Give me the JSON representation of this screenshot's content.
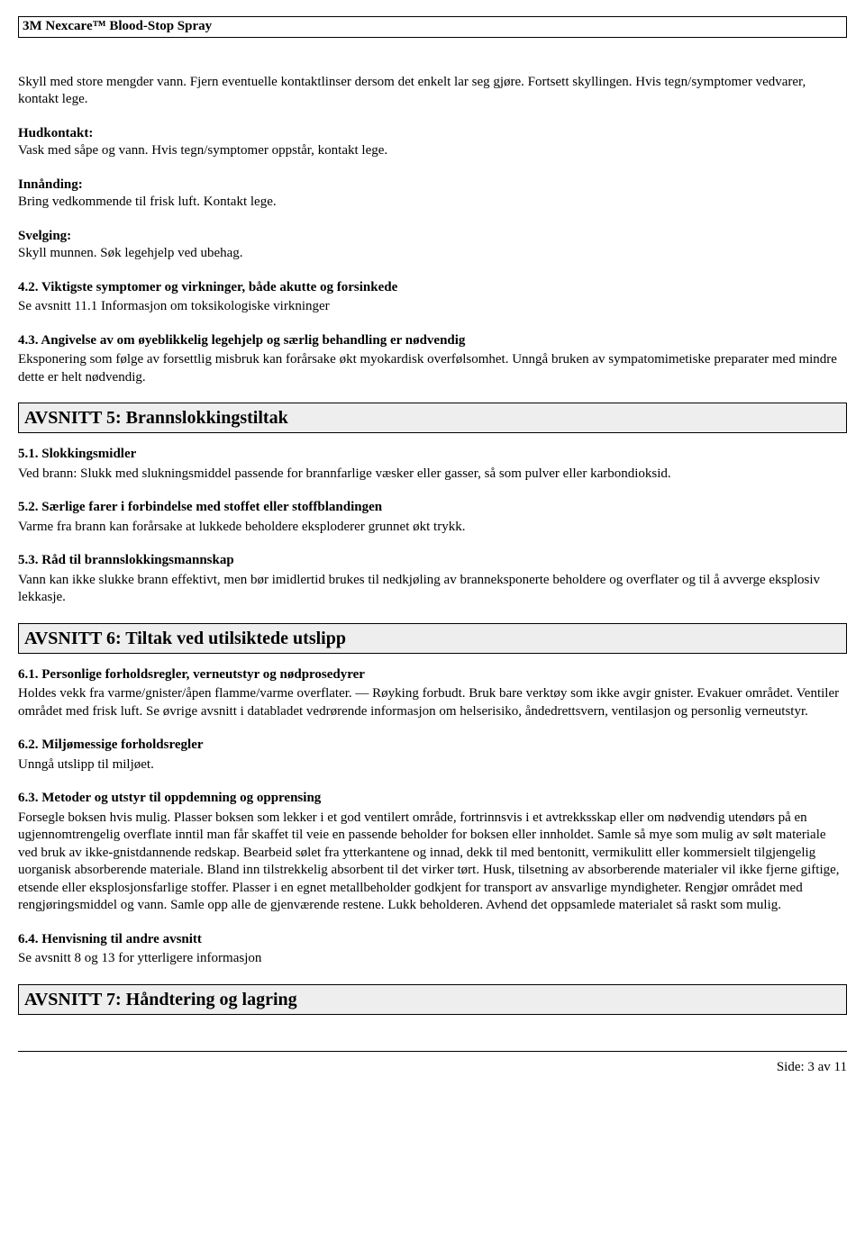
{
  "doc_title": "3M Nexcare™ Blood-Stop Spray",
  "intro_para": "Skyll med store mengder vann. Fjern eventuelle kontaktlinser dersom det enkelt lar seg gjøre. Fortsett skyllingen. Hvis tegn/symptomer vedvarer, kontakt lege.",
  "hudkontakt": {
    "label": "Hudkontakt:",
    "text": "Vask med såpe og vann. Hvis tegn/symptomer oppstår, kontakt lege."
  },
  "innanding": {
    "label": "Innånding:",
    "text": "Bring vedkommende til frisk luft. Kontakt lege."
  },
  "svelging": {
    "label": "Svelging:",
    "text": "Skyll munnen. Søk legehjelp ved ubehag."
  },
  "s42": {
    "heading": "4.2. Viktigste symptomer og virkninger, både akutte og forsinkede",
    "text": "Se avsnitt 11.1 Informasjon om toksikologiske virkninger"
  },
  "s43": {
    "heading": "4.3. Angivelse av om øyeblikkelig legehjelp og særlig behandling er nødvendig",
    "text": "Eksponering som følge av forsettlig misbruk kan forårsake økt myokardisk overfølsomhet. Unngå bruken av sympatomimetiske preparater med mindre dette er helt nødvendig."
  },
  "avsnitt5_title": "AVSNITT 5: Brannslokkingstiltak",
  "s51": {
    "heading": "5.1. Slokkingsmidler",
    "text": "Ved brann:  Slukk med slukningsmiddel passende for brannfarlige væsker eller gasser, så som pulver eller karbondioksid."
  },
  "s52": {
    "heading": "5.2. Særlige farer i forbindelse med stoffet eller stoffblandingen",
    "text": "Varme fra brann kan forårsake at lukkede beholdere eksploderer grunnet økt trykk."
  },
  "s53": {
    "heading": "5.3. Råd til brannslokkingsmannskap",
    "text": "Vann kan ikke slukke brann effektivt, men bør imidlertid brukes til nedkjøling av branneksponerte beholdere og overflater og til å avverge eksplosiv lekkasje."
  },
  "avsnitt6_title": "AVSNITT 6: Tiltak ved utilsiktede utslipp",
  "s61": {
    "heading": "6.1. Personlige forholdsregler, verneutstyr og nødprosedyrer",
    "text": "Holdes vekk fra varme/gnister/åpen flamme/varme overflater. — Røyking forbudt.  Bruk bare verktøy som ikke avgir gnister.  Evakuer området.  Ventiler området med frisk luft.  Se øvrige avsnitt i databladet vedrørende informasjon om helserisiko, åndedrettsvern, ventilasjon og personlig verneutstyr."
  },
  "s62": {
    "heading": "6.2. Miljømessige forholdsregler",
    "text": "Unngå utslipp til miljøet."
  },
  "s63": {
    "heading": "6.3. Metoder og utstyr til oppdemning og opprensing",
    "text": "Forsegle boksen hvis mulig. Plasser boksen som lekker i et god ventilert område, fortrinnsvis i et avtrekksskap eller om nødvendig utendørs på en ugjennomtrengelig overflate inntil man får skaffet til veie en passende beholder for boksen eller innholdet.  Samle så mye som mulig av sølt materiale ved bruk av ikke-gnistdannende redskap.  Bearbeid sølet fra ytterkantene og innad, dekk til med bentonitt, vermikulitt eller kommersielt tilgjengelig uorganisk absorberende materiale.  Bland inn tilstrekkelig absorbent til det virker tørt.  Husk, tilsetning av absorberende materialer vil ikke fjerne giftige, etsende eller eksplosjonsfarlige stoffer.  Plasser i en egnet metallbeholder godkjent for transport av ansvarlige myndigheter.  Rengjør området med rengjøringsmiddel og vann.  Samle opp alle de gjenværende restene.  Lukk beholderen.  Avhend det oppsamlede materialet så raskt som mulig."
  },
  "s64": {
    "heading": "6.4. Henvisning til andre avsnitt",
    "text": "Se avsnitt 8 og 13 for ytterligere informasjon"
  },
  "avsnitt7_title": "AVSNITT 7: Håndtering og lagring",
  "footer_text": "Side: 3 av  11"
}
